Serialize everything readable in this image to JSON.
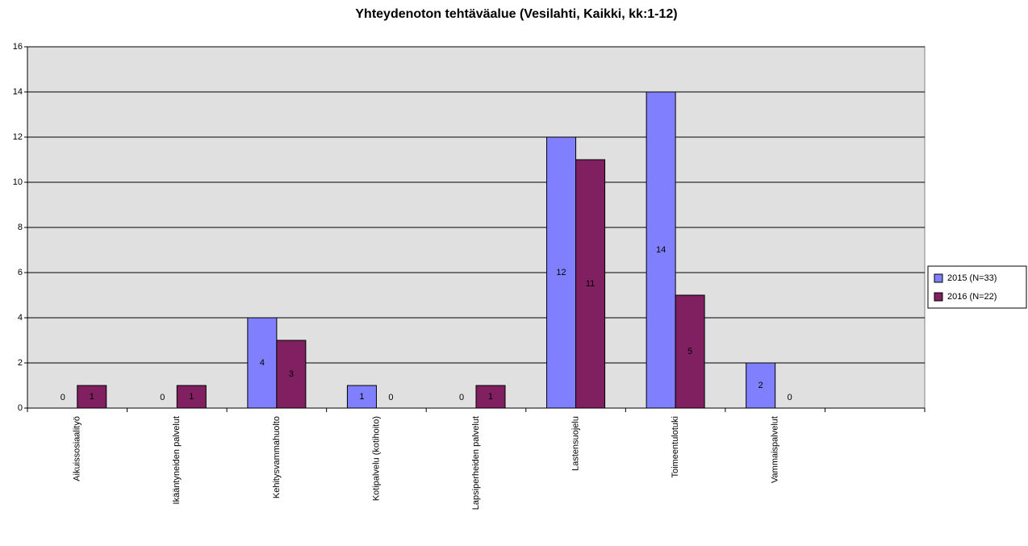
{
  "chart_data": {
    "type": "bar",
    "title": "Yhteydenoton tehtäväalue (Vesilahti, Kaikki, kk:1-12)",
    "categories": [
      "Aikuissosiaalityö",
      "Ikääntyneiden palvelut",
      "Kehitysvammahuolto",
      "Kotipalvelu (kotihoito)",
      "Lapsiperheiden palvelut",
      "Lastensuojelu",
      "Toimeentulotuki",
      "Vammaispalvelut",
      null
    ],
    "series": [
      {
        "name": "2015 (N=33)",
        "color": "#8080ff",
        "values": [
          0,
          0,
          4,
          1,
          0,
          12,
          14,
          2,
          null
        ]
      },
      {
        "name": "2016 (N=22)",
        "color": "#802060",
        "values": [
          1,
          1,
          3,
          0,
          1,
          11,
          5,
          0,
          null
        ]
      }
    ],
    "ylim": [
      0,
      16
    ],
    "yticks": [
      0,
      2,
      4,
      6,
      8,
      10,
      12,
      14,
      16
    ],
    "grid": true,
    "legend": "right"
  }
}
